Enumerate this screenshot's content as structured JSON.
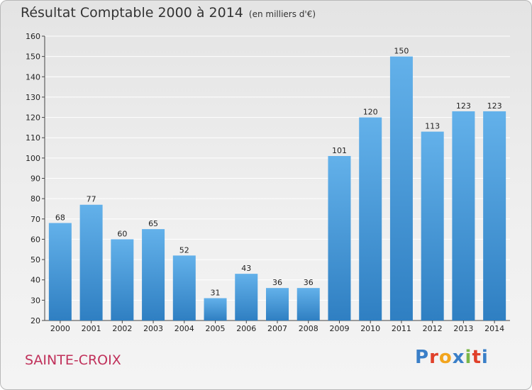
{
  "header": {
    "title": "Résultat Comptable 2000 à 2014",
    "subtitle": "(en milliers d'€)"
  },
  "footer": {
    "town": "SAINTE-CROIX",
    "brand_letters": [
      "P",
      "r",
      "o",
      "x",
      "i",
      "t",
      "i"
    ],
    "brand_colors": [
      "#3a7fc8",
      "#e0402a",
      "#f2a51e",
      "#3a7fc8",
      "#7ab648",
      "#e0402a",
      "#3a7fc8"
    ]
  },
  "colors": {
    "bar_light": "#63b1ea",
    "bar_dark": "#2f7fc2",
    "grid": "#ffffff",
    "axis": "#444444"
  },
  "chart_data": {
    "type": "bar",
    "title": "Résultat Comptable 2000 à 2014",
    "subtitle": "(en milliers d'€)",
    "xlabel": "",
    "ylabel": "",
    "categories": [
      "2000",
      "2001",
      "2002",
      "2003",
      "2004",
      "2005",
      "2006",
      "2007",
      "2008",
      "2009",
      "2010",
      "2011",
      "2012",
      "2013",
      "2014"
    ],
    "values": [
      68,
      77,
      60,
      65,
      52,
      31,
      43,
      36,
      36,
      101,
      120,
      150,
      113,
      123,
      123
    ],
    "ylim": [
      20,
      160
    ],
    "yticks": [
      20,
      30,
      40,
      50,
      60,
      70,
      80,
      90,
      100,
      110,
      120,
      130,
      140,
      150,
      160
    ],
    "grid": true,
    "data_labels": true
  }
}
